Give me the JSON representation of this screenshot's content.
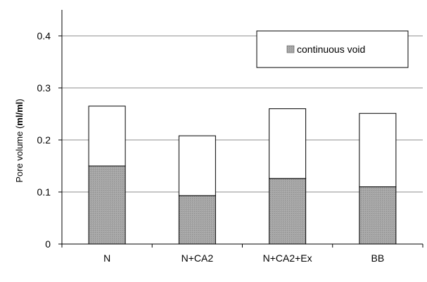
{
  "chart_data": {
    "type": "bar",
    "stacked": true,
    "categories": [
      "N",
      "N+CA2",
      "N+CA2+Ex",
      "BB"
    ],
    "series": [
      {
        "name": "continuous void",
        "values": [
          0.15,
          0.093,
          0.126,
          0.11
        ],
        "color": "#a0a0a0"
      },
      {
        "values": [
          0.115,
          0.115,
          0.134,
          0.141
        ],
        "color": "#ffffff"
      }
    ],
    "totals": [
      0.265,
      0.208,
      0.26,
      0.251
    ],
    "ylabel_prefix": "Pore volume (",
    "ylabel_unit": "ml/ml",
    "ylabel_suffix": ")",
    "ylim": [
      0,
      0.45
    ],
    "yticks": [
      0,
      0.1,
      0.2,
      0.3,
      0.4
    ],
    "ytick_labels": [
      "0",
      "0.1",
      "0.2",
      "0.3",
      "0.4"
    ],
    "grid": true,
    "legend": {
      "position": "top-right",
      "label": "continuous void"
    }
  }
}
